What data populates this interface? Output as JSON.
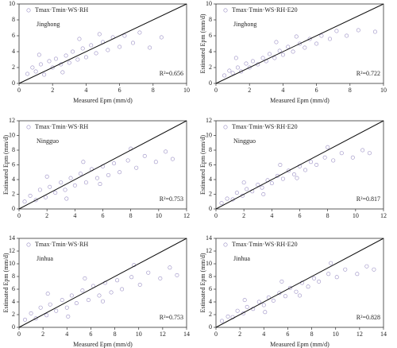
{
  "chart_data": [
    {
      "type": "scatter",
      "annotation": "Jinghong",
      "r2_label": "R²=0.656",
      "xlabel": "Measured Epm (mm/d)",
      "xlim": [
        0,
        10
      ],
      "ylim": [
        0,
        10
      ],
      "xticks": [
        0,
        2,
        4,
        6,
        8,
        10
      ],
      "yticks": [
        0,
        2,
        4,
        6,
        8,
        10
      ],
      "identity_line": true,
      "series": [
        {
          "name": "Tmax·Tmin·WS·RH",
          "color": "#9a8fc4",
          "x": [
            0.5,
            0.8,
            1.0,
            1.3,
            1.5,
            1.8,
            2.0,
            2.2,
            2.5,
            2.8,
            3.0,
            3.2,
            3.5,
            3.8,
            4.0,
            4.3,
            4.6,
            5.0,
            5.3,
            5.6,
            6.0,
            6.3,
            6.8,
            7.2,
            7.8,
            8.5,
            1.2,
            3.6,
            2.6,
            4.8
          ],
          "values": [
            1.2,
            2.0,
            1.5,
            2.4,
            1.1,
            2.8,
            2.0,
            3.1,
            2.4,
            3.5,
            2.6,
            4.0,
            3.0,
            4.4,
            3.3,
            4.8,
            3.8,
            5.2,
            4.2,
            5.8,
            4.6,
            6.0,
            5.1,
            6.4,
            4.5,
            5.8,
            3.6,
            5.6,
            1.4,
            6.2
          ]
        }
      ]
    },
    {
      "type": "scatter",
      "annotation": "Jinghong",
      "r2_label": "R²=0.722",
      "xlabel": "Measured Epm (mm/d)",
      "ylabel": "Estimated Epm (mm/d)",
      "xlim": [
        0,
        10
      ],
      "ylim": [
        0,
        10
      ],
      "xticks": [
        0,
        2,
        4,
        6,
        8,
        10
      ],
      "yticks": [
        0,
        2,
        4,
        6,
        8,
        10
      ],
      "identity_line": true,
      "series": [
        {
          "name": "Tmax·Tmin·WS·RH·E20",
          "color": "#9a8fc4",
          "x": [
            0.5,
            0.8,
            1.0,
            1.3,
            1.5,
            1.8,
            2.0,
            2.2,
            2.5,
            2.8,
            3.0,
            3.2,
            3.5,
            3.8,
            4.0,
            4.3,
            4.6,
            5.0,
            5.3,
            5.6,
            6.0,
            6.3,
            6.8,
            7.2,
            7.8,
            8.5,
            1.2,
            3.6,
            9.5,
            4.8
          ],
          "values": [
            1.0,
            1.6,
            1.3,
            2.0,
            1.5,
            2.5,
            2.0,
            2.8,
            2.4,
            3.2,
            2.8,
            3.7,
            3.2,
            4.1,
            3.6,
            4.6,
            4.0,
            5.0,
            4.5,
            5.6,
            5.0,
            6.0,
            5.6,
            6.6,
            6.0,
            6.7,
            3.2,
            5.2,
            6.5,
            5.9
          ]
        }
      ]
    },
    {
      "type": "scatter",
      "annotation": "Ningguo",
      "r2_label": "R²=0.753",
      "ylabel": "Estimated Epm (mm/d)",
      "xlim": [
        0,
        12
      ],
      "ylim": [
        0,
        12
      ],
      "xticks": [
        0,
        2,
        4,
        6,
        8,
        10,
        12
      ],
      "yticks": [
        0,
        2,
        4,
        6,
        8,
        10,
        12
      ],
      "identity_line": true,
      "series": [
        {
          "name": "Tmax·Tmin·WS·RH",
          "color": "#9a8fc4",
          "x": [
            0.4,
            0.8,
            1.2,
            1.5,
            1.9,
            2.2,
            2.6,
            3.0,
            3.3,
            3.7,
            4.0,
            4.4,
            4.8,
            5.2,
            5.6,
            6.0,
            6.4,
            6.8,
            7.2,
            7.8,
            8.4,
            9.0,
            9.8,
            10.5,
            11.0,
            2.0,
            4.6,
            3.4,
            8.0,
            5.8
          ],
          "values": [
            1.0,
            1.8,
            1.2,
            2.6,
            1.6,
            3.0,
            2.2,
            3.6,
            2.6,
            4.2,
            3.2,
            4.8,
            3.6,
            5.4,
            4.2,
            5.8,
            4.6,
            6.2,
            5.0,
            6.6,
            5.6,
            7.2,
            6.4,
            7.8,
            6.8,
            4.4,
            6.4,
            1.4,
            8.2,
            3.4
          ]
        }
      ]
    },
    {
      "type": "scatter",
      "annotation": "Ningguo",
      "r2_label": "R²=0.817",
      "ylabel": "Estimated Epm (mm/d)",
      "xlim": [
        0,
        12
      ],
      "ylim": [
        0,
        12
      ],
      "xticks": [
        0,
        2,
        4,
        6,
        8,
        10,
        12
      ],
      "yticks": [
        0,
        2,
        4,
        6,
        8,
        10,
        12
      ],
      "identity_line": true,
      "series": [
        {
          "name": "Tmax·Tmin·WS·RH·E20",
          "color": "#9a8fc4",
          "x": [
            0.4,
            0.8,
            1.2,
            1.5,
            1.9,
            2.2,
            2.6,
            3.0,
            3.3,
            3.7,
            4.0,
            4.4,
            4.8,
            5.2,
            5.6,
            6.0,
            6.4,
            6.8,
            7.2,
            7.8,
            8.4,
            9.0,
            9.8,
            10.5,
            11.0,
            2.0,
            4.6,
            3.4,
            8.0,
            5.8
          ],
          "values": [
            0.8,
            1.4,
            1.3,
            2.2,
            1.8,
            2.7,
            2.4,
            3.3,
            2.9,
            3.9,
            3.5,
            4.5,
            4.1,
            5.2,
            4.7,
            5.8,
            5.3,
            6.4,
            6.0,
            7.0,
            6.6,
            7.6,
            7.0,
            8.0,
            7.6,
            3.6,
            6.0,
            2.0,
            8.4,
            4.2
          ]
        }
      ]
    },
    {
      "type": "scatter",
      "annotation": "Jinhua",
      "r2_label": "R²=0.753",
      "xlabel": "Measured Epm (mm/d)",
      "ylabel": "Estimated Epm (mm/d)",
      "xlim": [
        0,
        14
      ],
      "ylim": [
        0,
        14
      ],
      "xticks": [
        0,
        2,
        4,
        6,
        8,
        10,
        12,
        14
      ],
      "yticks": [
        0,
        2,
        4,
        6,
        8,
        10,
        12,
        14
      ],
      "identity_line": true,
      "series": [
        {
          "name": "Tmax·Tmin·WS·RH",
          "color": "#9a8fc4",
          "x": [
            0.5,
            1.0,
            1.4,
            1.8,
            2.3,
            2.6,
            3.1,
            3.6,
            4.0,
            4.4,
            4.8,
            5.3,
            5.8,
            6.2,
            6.7,
            7.2,
            7.7,
            8.2,
            8.6,
            9.4,
            10.1,
            10.8,
            11.8,
            12.6,
            13.2,
            2.4,
            5.5,
            4.1,
            9.6,
            7.0
          ],
          "values": [
            1.2,
            2.2,
            1.4,
            3.1,
            1.9,
            3.6,
            2.6,
            4.3,
            3.1,
            5.0,
            3.8,
            5.8,
            4.3,
            6.5,
            5.0,
            7.0,
            5.5,
            7.4,
            6.0,
            7.9,
            6.7,
            8.6,
            7.7,
            9.4,
            8.2,
            5.3,
            7.7,
            1.7,
            9.8,
            4.1
          ]
        }
      ]
    },
    {
      "type": "scatter",
      "annotation": "Jinhua",
      "r2_label": "R²=0.828",
      "xlabel": "Measured Epm (mm/d)",
      "ylabel": "Estimated Epm (mm/d)",
      "xlim": [
        0,
        14
      ],
      "ylim": [
        0,
        14
      ],
      "xticks": [
        0,
        2,
        4,
        6,
        8,
        10,
        12,
        14
      ],
      "yticks": [
        0,
        2,
        4,
        6,
        8,
        10,
        12,
        14
      ],
      "identity_line": true,
      "series": [
        {
          "name": "Tmax·Tmin·WS·RH·E20",
          "color": "#9a8fc4",
          "x": [
            0.5,
            1.0,
            1.4,
            1.8,
            2.3,
            2.6,
            3.1,
            3.6,
            4.0,
            4.4,
            4.8,
            5.3,
            5.8,
            6.2,
            6.7,
            7.2,
            7.7,
            8.2,
            8.6,
            9.4,
            10.1,
            10.8,
            11.8,
            12.6,
            13.2,
            2.4,
            5.5,
            4.1,
            9.6,
            7.0
          ],
          "values": [
            1.0,
            1.7,
            1.6,
            2.6,
            2.2,
            3.2,
            2.9,
            4.0,
            3.5,
            4.7,
            4.2,
            5.4,
            4.9,
            6.2,
            5.6,
            7.0,
            6.4,
            7.7,
            7.2,
            8.4,
            7.9,
            9.1,
            8.4,
            9.6,
            9.1,
            4.3,
            7.2,
            2.4,
            10.1,
            5.0
          ]
        }
      ]
    }
  ]
}
